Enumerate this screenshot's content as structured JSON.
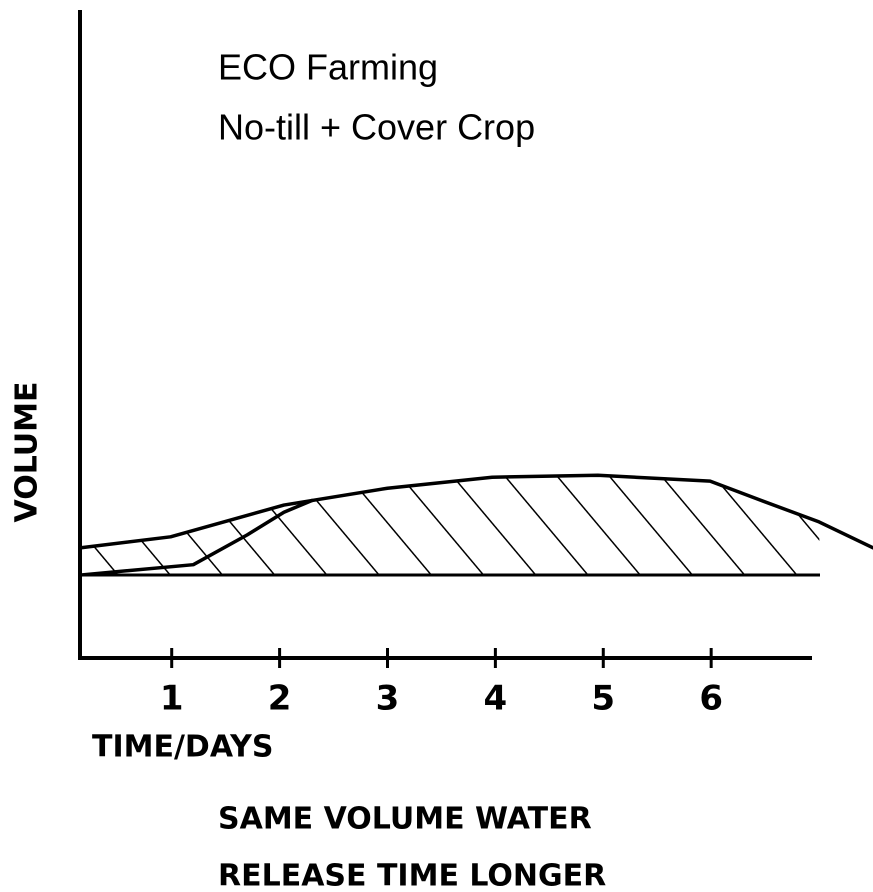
{
  "chart_data": {
    "type": "area",
    "title": "ECO Farming",
    "subtitle": "No-till + Cover Crop",
    "y_label": "VOLUME",
    "x_label": "TIME/DAYS",
    "annotations": [
      "SAME VOLUME WATER",
      "RELEASE TIME LONGER"
    ],
    "xlim": [
      0.15,
      7.5
    ],
    "ylim": [
      0,
      100
    ],
    "xticks": [
      1,
      2,
      3,
      4,
      5,
      6
    ],
    "color": "#000000",
    "series": [
      {
        "x": [
          0.15,
          0.99,
          2.04,
          3.0,
          3.97,
          4.95,
          5.99,
          6.45,
          7.0,
          7.5
        ],
        "values": [
          17,
          18.7,
          23.6,
          26.2,
          27.9,
          28.2,
          27.3,
          24.4,
          21,
          17
        ]
      },
      {
        "x": [
          0.15,
          1.2,
          1.7,
          2.04,
          2.3
        ],
        "values": [
          12.8,
          14.4,
          19,
          22.5,
          24.3
        ]
      }
    ]
  }
}
